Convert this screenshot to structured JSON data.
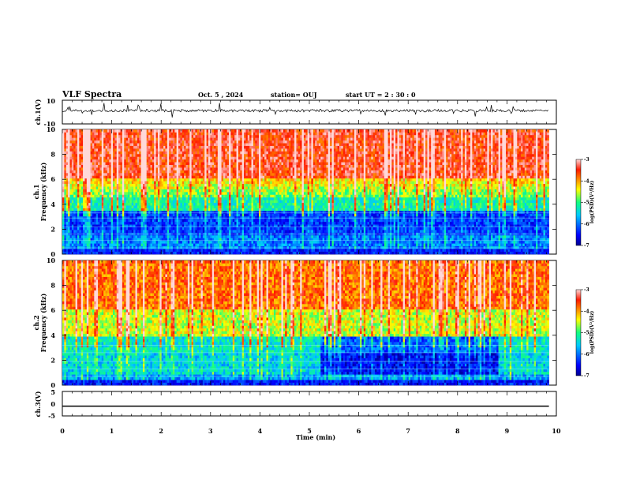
{
  "header": {
    "title": "VLF Spectra",
    "date": "Oct. 5 , 2024",
    "station": "station= OUJ",
    "start_ut": "start UT =  2 : 30 : 0"
  },
  "chart_data": [
    {
      "type": "line",
      "panel": "ch1-waveform",
      "ylabel": "ch.1(V)",
      "ylim": [
        -10,
        10
      ],
      "yticks": [
        "10",
        "-10"
      ],
      "baseline_v": 1.2
    },
    {
      "type": "heatmap",
      "panel": "ch1-spectrogram",
      "ylabel_line1": "ch.1",
      "ylabel_line2": "Frequency (kHz)",
      "ylim": [
        0,
        10
      ],
      "yticks": [
        "0",
        "2",
        "4",
        "6",
        "8",
        "10"
      ],
      "xlim": [
        0,
        10
      ],
      "data_end_min": 9.85,
      "colorbar": {
        "label": "log(PSD)(V²/Hz)",
        "range": [
          -7,
          -3
        ],
        "ticks": [
          "-3",
          "-4",
          "-5",
          "-6",
          "-7"
        ]
      }
    },
    {
      "type": "heatmap",
      "panel": "ch2-spectrogram",
      "ylabel_line1": "ch.2",
      "ylabel_line2": "Frequency (kHz)",
      "ylim": [
        0,
        10
      ],
      "yticks": [
        "0",
        "2",
        "4",
        "6",
        "8",
        "10"
      ],
      "xlim": [
        0,
        10
      ],
      "data_end_min": 9.85,
      "colorbar": {
        "label": "log(PSD)(V²/Hz)",
        "range": [
          -7,
          -3
        ],
        "ticks": [
          "-3",
          "-4",
          "-5",
          "-6",
          "-7"
        ]
      }
    },
    {
      "type": "line",
      "panel": "ch3-waveform",
      "ylabel": "ch.3(V)",
      "ylim": [
        -5,
        5
      ],
      "yticks": [
        "5",
        "0",
        "-5"
      ],
      "x": [
        0,
        9.85
      ],
      "y": [
        -1,
        -1
      ]
    }
  ],
  "xaxis": {
    "label": "Time (min)",
    "range": [
      0,
      10
    ],
    "ticks": [
      "0",
      "1",
      "2",
      "3",
      "4",
      "5",
      "6",
      "7",
      "8",
      "9",
      "10"
    ]
  },
  "colors": {
    "jet_low": "#00008f",
    "jet_mid": "#10ff80",
    "jet_high": "#ff1a00",
    "trace": "#000000"
  }
}
